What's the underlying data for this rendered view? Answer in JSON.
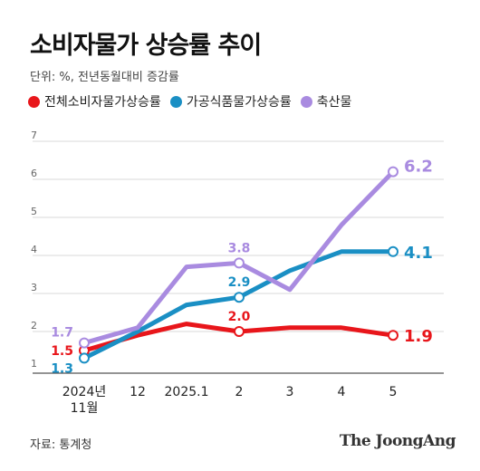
{
  "title": "소비자물가 상승률 추이",
  "subtitle": "단위: %, 전년동월대비 증감률",
  "source": "자료: 통계청",
  "brand": "The JoongAng",
  "chart_data": {
    "type": "line",
    "categories": [
      [
        "2024년",
        "11월"
      ],
      [
        "12"
      ],
      [
        "2025.1"
      ],
      [
        "2"
      ],
      [
        "3"
      ],
      [
        "4"
      ],
      [
        "5"
      ]
    ],
    "ylim": [
      1,
      7
    ],
    "yticks": [
      1,
      2,
      3,
      4,
      5,
      6,
      7
    ],
    "grid": true,
    "legend_position": "top-left",
    "series": [
      {
        "name": "전체소비자물가상승률",
        "color": "#e8161b",
        "values": [
          1.5,
          1.9,
          2.2,
          2.0,
          2.1,
          2.1,
          1.9
        ],
        "labels": [
          {
            "index": 0,
            "text": "1.5"
          },
          {
            "index": 3,
            "text": "2.0"
          },
          {
            "index": 6,
            "text": "1.9"
          }
        ]
      },
      {
        "name": "가공식품물가상승률",
        "color": "#1a8fc4",
        "values": [
          1.3,
          2.0,
          2.7,
          2.9,
          3.6,
          4.1,
          4.1
        ],
        "labels": [
          {
            "index": 0,
            "text": "1.3"
          },
          {
            "index": 3,
            "text": "2.9"
          },
          {
            "index": 6,
            "text": "4.1"
          }
        ]
      },
      {
        "name": "축산물",
        "color": "#a98be0",
        "values": [
          1.7,
          2.1,
          3.7,
          3.8,
          3.1,
          4.8,
          6.2
        ],
        "labels": [
          {
            "index": 0,
            "text": "1.7"
          },
          {
            "index": 3,
            "text": "3.8"
          },
          {
            "index": 6,
            "text": "6.2"
          }
        ]
      }
    ]
  }
}
